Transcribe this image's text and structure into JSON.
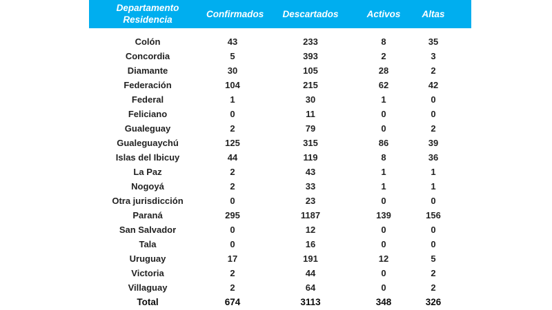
{
  "colors": {
    "accent": "#00AEEF",
    "row_background": "#EFEFEF",
    "header_text": "#FFFFFF",
    "body_text": "#222222",
    "total_text": "#0A0A0A"
  },
  "chart_data": {
    "type": "table",
    "title": "",
    "header": {
      "department_line1": "Departamento",
      "department_line2": "Residencia",
      "confirmed": "Confirmados",
      "discarded": "Descartados",
      "active": "Activos",
      "recovered": "Altas"
    },
    "rows": [
      {
        "department": "Colón",
        "confirmed": 43,
        "discarded": 233,
        "active": 8,
        "recovered": 35
      },
      {
        "department": "Concordia",
        "confirmed": 5,
        "discarded": 393,
        "active": 2,
        "recovered": 3
      },
      {
        "department": "Diamante",
        "confirmed": 30,
        "discarded": 105,
        "active": 28,
        "recovered": 2
      },
      {
        "department": "Federación",
        "confirmed": 104,
        "discarded": 215,
        "active": 62,
        "recovered": 42
      },
      {
        "department": "Federal",
        "confirmed": 1,
        "discarded": 30,
        "active": 1,
        "recovered": 0
      },
      {
        "department": "Feliciano",
        "confirmed": 0,
        "discarded": 11,
        "active": 0,
        "recovered": 0
      },
      {
        "department": "Gualeguay",
        "confirmed": 2,
        "discarded": 79,
        "active": 0,
        "recovered": 2
      },
      {
        "department": "Gualeguaychú",
        "confirmed": 125,
        "discarded": 315,
        "active": 86,
        "recovered": 39
      },
      {
        "department": "Islas del Ibicuy",
        "confirmed": 44,
        "discarded": 119,
        "active": 8,
        "recovered": 36
      },
      {
        "department": "La Paz",
        "confirmed": 2,
        "discarded": 43,
        "active": 1,
        "recovered": 1
      },
      {
        "department": "Nogoyá",
        "confirmed": 2,
        "discarded": 33,
        "active": 1,
        "recovered": 1
      },
      {
        "department": "Otra jurisdicción",
        "confirmed": 0,
        "discarded": 23,
        "active": 0,
        "recovered": 0
      },
      {
        "department": "Paraná",
        "confirmed": 295,
        "discarded": 1187,
        "active": 139,
        "recovered": 156
      },
      {
        "department": "San Salvador",
        "confirmed": 0,
        "discarded": 12,
        "active": 0,
        "recovered": 0
      },
      {
        "department": "Tala",
        "confirmed": 0,
        "discarded": 16,
        "active": 0,
        "recovered": 0
      },
      {
        "department": "Uruguay",
        "confirmed": 17,
        "discarded": 191,
        "active": 12,
        "recovered": 5
      },
      {
        "department": "Victoria",
        "confirmed": 2,
        "discarded": 44,
        "active": 0,
        "recovered": 2
      },
      {
        "department": "Villaguay",
        "confirmed": 2,
        "discarded": 64,
        "active": 0,
        "recovered": 2
      }
    ],
    "total": {
      "label": "Total",
      "confirmed": 674,
      "discarded": 3113,
      "active": 348,
      "recovered": 326
    }
  }
}
